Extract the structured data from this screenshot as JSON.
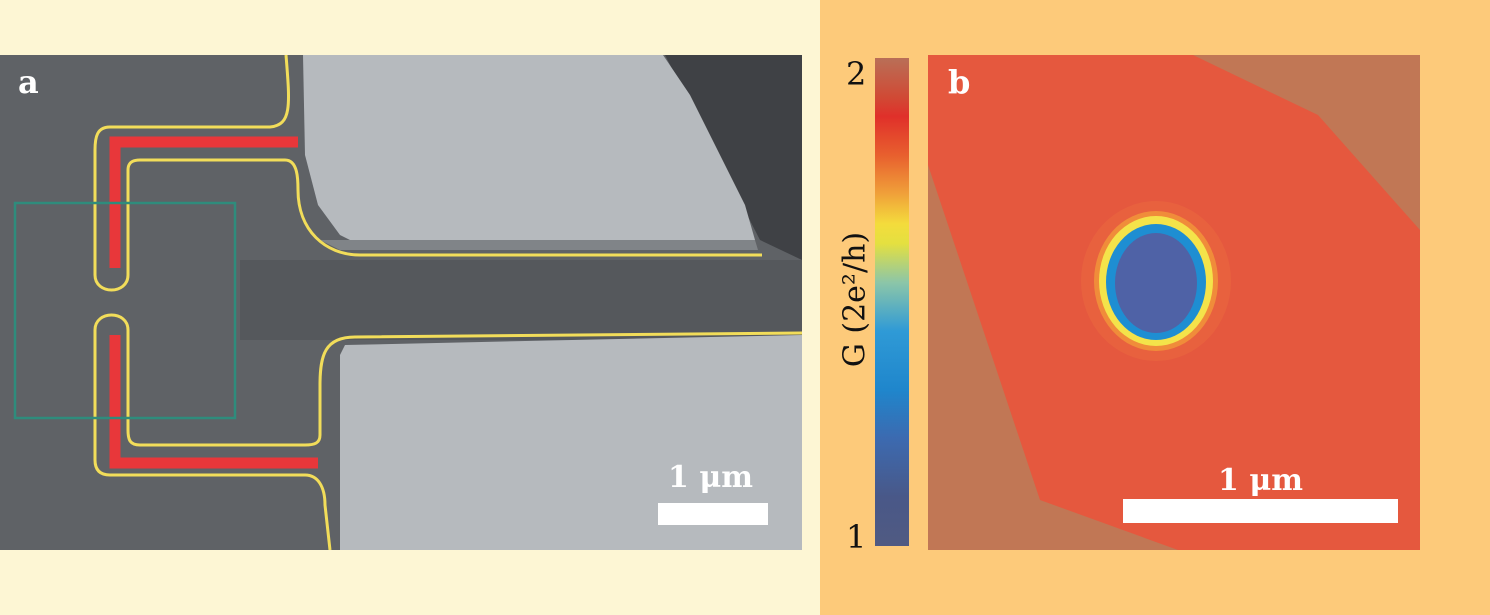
{
  "figure": {
    "panel_a": {
      "letter": "a",
      "scale_bar_label": "1 μm",
      "colors": {
        "background": "#5f6266",
        "electrode": "#b6babe",
        "gate_outline": "#f2dd5a",
        "depleted_region": "#e8373a",
        "scan_window": "#2f8c7c"
      }
    },
    "panel_b": {
      "letter": "b",
      "scale_bar_label": "1 μm",
      "colorbar": {
        "label": "G (2e²/h)",
        "tick_max": "2",
        "tick_min": "1"
      },
      "colors": {
        "background": "#c17755",
        "scan_area": "#e5583e",
        "ring_outer": "#f4e34a",
        "ring_inner": "#1e8ed2",
        "center": "#4f62a6"
      }
    }
  }
}
